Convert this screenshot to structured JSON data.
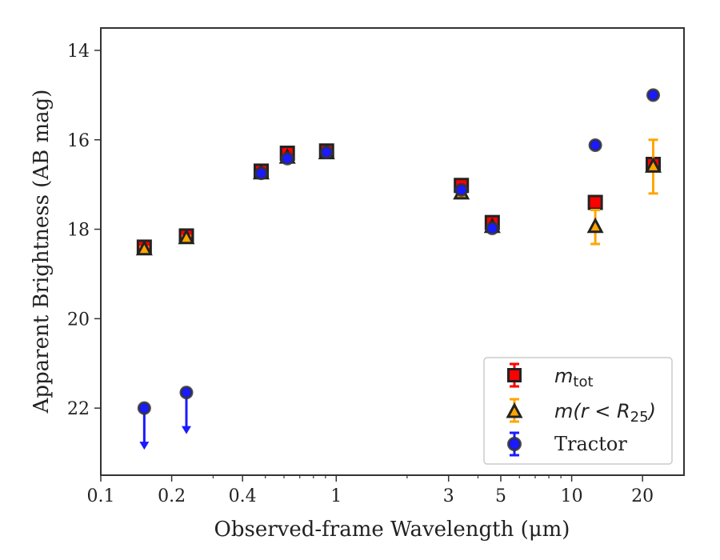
{
  "chart_data": {
    "type": "scatter",
    "xlabel": "Observed-frame Wavelength (μm)",
    "ylabel": "Apparent Brightness (AB mag)",
    "xscale": "log",
    "xlim": [
      0.1,
      30
    ],
    "ylim": [
      23.5,
      13.5
    ],
    "y_inverted": true,
    "grid": false,
    "legend_position": "lower-right",
    "x_tick_labels": [
      "0.1",
      "0.2",
      "0.4",
      "1",
      "3",
      "5",
      "10",
      "20"
    ],
    "x_ticks": [
      0.1,
      0.2,
      0.4,
      1,
      3,
      5,
      10,
      20
    ],
    "y_ticks": [
      14,
      16,
      18,
      20,
      22
    ],
    "colors": {
      "mtot": "#ff0000",
      "mr25": "#ffa500",
      "tractor": "#1a1aff",
      "edge": "#222222"
    },
    "series": [
      {
        "name": "m_tot",
        "legend_main": "m",
        "legend_sub": "tot",
        "marker": "square",
        "points": [
          {
            "x": 0.153,
            "y": 18.4,
            "err": 0.1
          },
          {
            "x": 0.231,
            "y": 18.15,
            "err": 0.1
          },
          {
            "x": 0.48,
            "y": 16.7,
            "err": 0.1
          },
          {
            "x": 0.62,
            "y": 16.3,
            "err": 0.1
          },
          {
            "x": 0.91,
            "y": 16.25,
            "err": 0.1
          },
          {
            "x": 3.4,
            "y": 17.02,
            "err": 0.1
          },
          {
            "x": 4.6,
            "y": 17.85,
            "err": 0.1
          },
          {
            "x": 12.6,
            "y": 17.4,
            "err": 0.0
          },
          {
            "x": 22.2,
            "y": 16.55,
            "err": 0.0
          }
        ]
      },
      {
        "name": "m(r<R25)",
        "legend_main": "m(r < R",
        "legend_sub": "25",
        "legend_tail": ")",
        "marker": "triangle",
        "points": [
          {
            "x": 0.153,
            "y": 18.45,
            "err": 0.05
          },
          {
            "x": 0.231,
            "y": 18.2,
            "err": 0.05
          },
          {
            "x": 0.48,
            "y": 16.75,
            "err": 0.05
          },
          {
            "x": 0.62,
            "y": 16.4,
            "err": 0.05
          },
          {
            "x": 0.91,
            "y": 16.3,
            "err": 0.05
          },
          {
            "x": 3.4,
            "y": 17.2,
            "err": 0.05
          },
          {
            "x": 4.6,
            "y": 17.95,
            "err": 0.05
          },
          {
            "x": 12.6,
            "y": 17.95,
            "err": 0.38
          },
          {
            "x": 22.2,
            "y": 16.6,
            "err": 0.6
          }
        ]
      },
      {
        "name": "Tractor",
        "legend_main": "Tractor",
        "marker": "circle",
        "points": [
          {
            "x": 0.153,
            "y": 22.0,
            "upper_limit": true
          },
          {
            "x": 0.231,
            "y": 21.65,
            "upper_limit": true
          },
          {
            "x": 0.48,
            "y": 16.75,
            "err": 0.05
          },
          {
            "x": 0.62,
            "y": 16.42,
            "err": 0.05
          },
          {
            "x": 0.91,
            "y": 16.28,
            "err": 0.05
          },
          {
            "x": 3.4,
            "y": 17.12,
            "err": 0.05
          },
          {
            "x": 4.6,
            "y": 17.98,
            "err": 0.05
          },
          {
            "x": 12.6,
            "y": 16.12,
            "err": 0.05
          },
          {
            "x": 22.2,
            "y": 15.0,
            "err": 0.05
          }
        ]
      }
    ]
  }
}
